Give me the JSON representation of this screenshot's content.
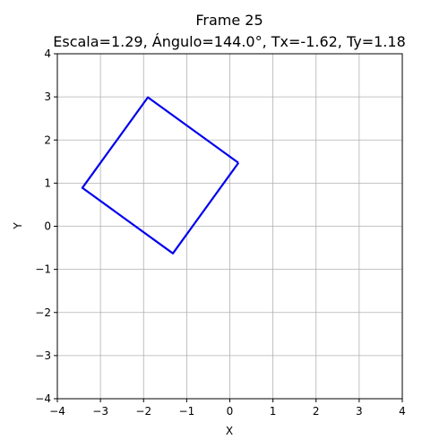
{
  "chart_data": {
    "type": "line",
    "title": "Frame 25",
    "subtitle": "Escala=1.29, Ángulo=144.0°, Tx=-1.62, Ty=1.18",
    "xlabel": "X",
    "ylabel": "Y",
    "xlim": [
      -4,
      4
    ],
    "ylim": [
      -4,
      4
    ],
    "xticks": [
      -4,
      -3,
      -2,
      -1,
      0,
      1,
      2,
      3,
      4
    ],
    "yticks": [
      -4,
      -3,
      -2,
      -1,
      0,
      1,
      2,
      3,
      4
    ],
    "xtick_labels": [
      "−4",
      "−3",
      "−2",
      "−1",
      "0",
      "1",
      "2",
      "3",
      "4"
    ],
    "ytick_labels": [
      "−4",
      "−3",
      "−2",
      "−1",
      "0",
      "1",
      "2",
      "3",
      "4"
    ],
    "grid": true,
    "series": [
      {
        "color": "#0000ee",
        "closed": true,
        "x": [
          0.2,
          -1.9,
          -3.42,
          -1.32,
          0.2
        ],
        "y": [
          1.47,
          2.99,
          0.89,
          -0.63,
          1.47
        ]
      }
    ]
  }
}
